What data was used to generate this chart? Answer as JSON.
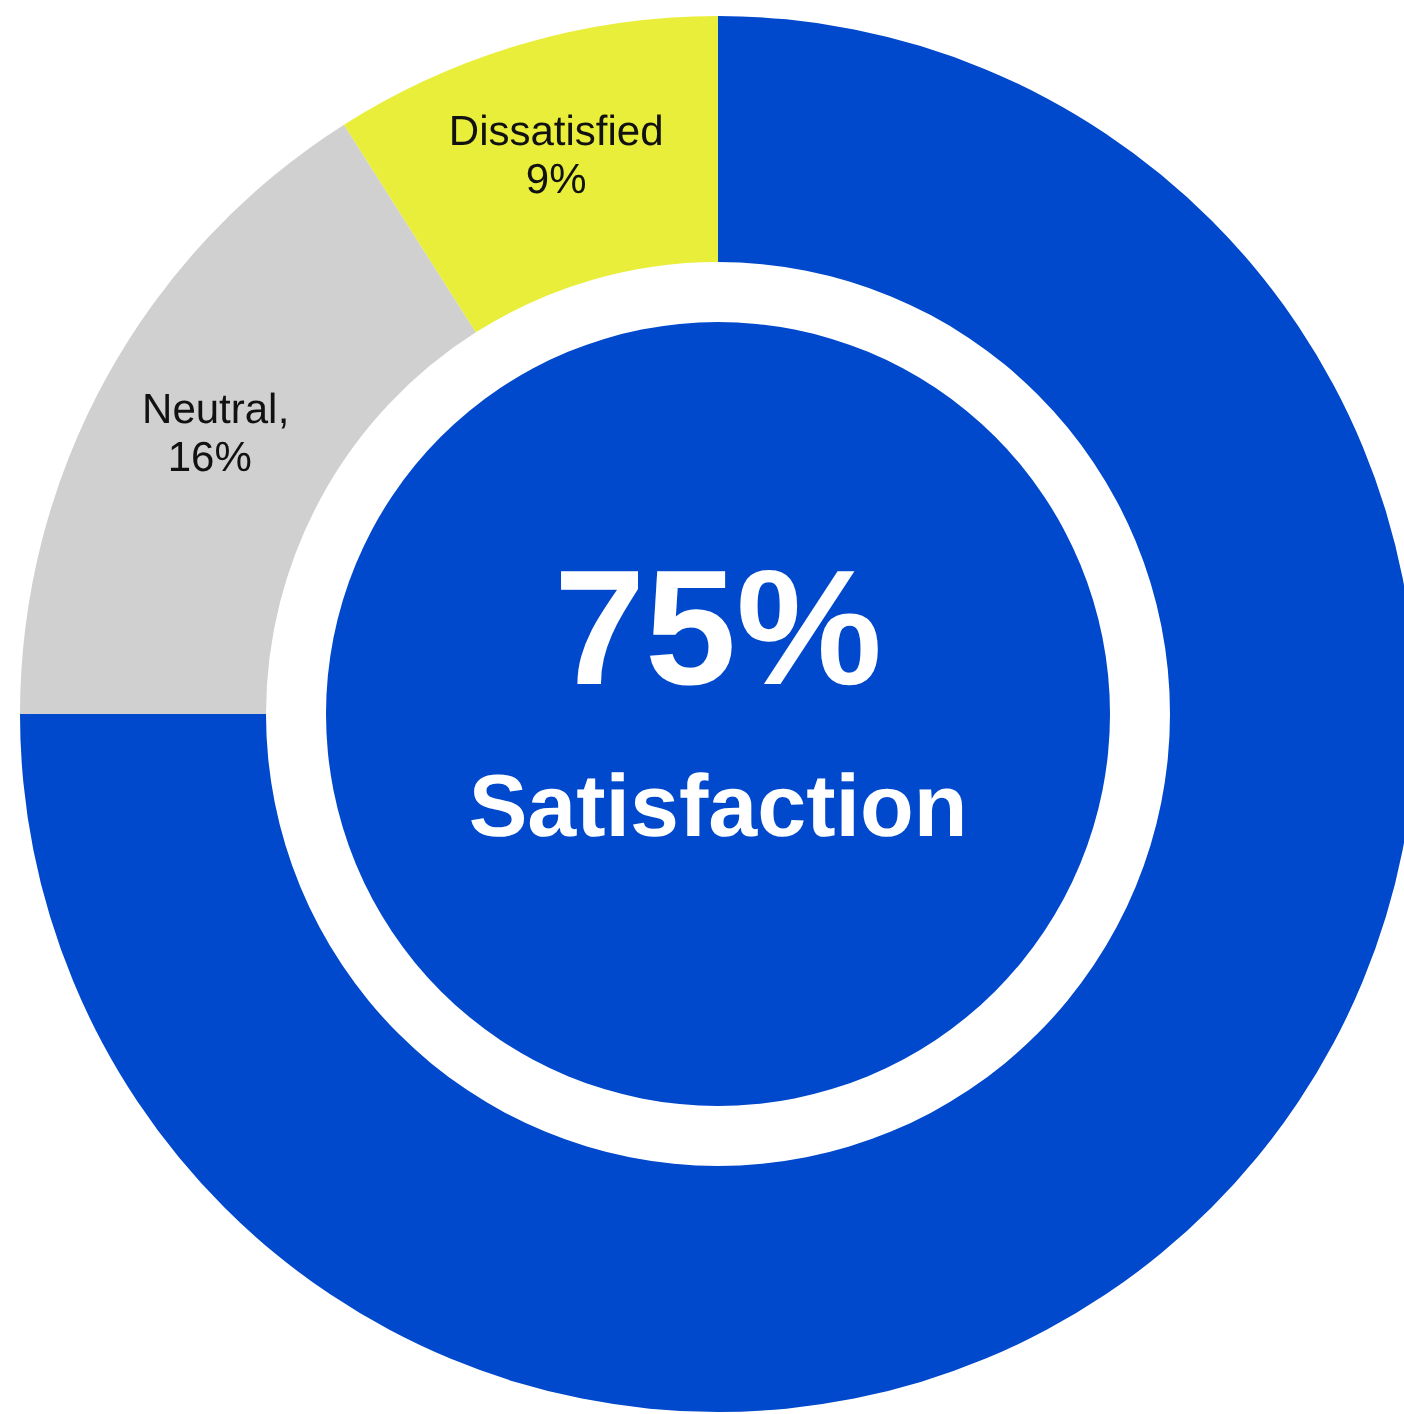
{
  "chart_data": {
    "type": "donut",
    "categories": [
      "Satisfaction",
      "Neutral",
      "Dissatisfied"
    ],
    "values": [
      75,
      16,
      9
    ],
    "colors": [
      "#0048cc",
      "#d0d0d0",
      "#e8ee3a"
    ],
    "value_labels": [
      "75%",
      "16%",
      "9%"
    ],
    "annotations": [
      ","
    ]
  }
}
